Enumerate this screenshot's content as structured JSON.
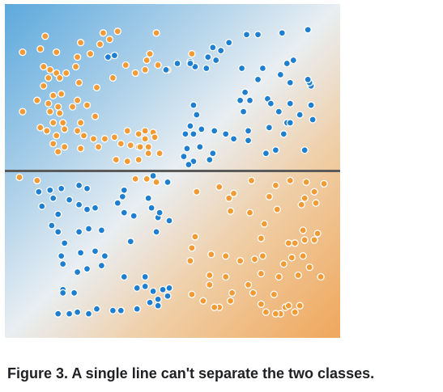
{
  "caption": "Figure 3. A single line can't separate the two classes.",
  "colors": {
    "blue_class": "#1e7fd0",
    "orange_class": "#f29a34",
    "point_stroke": "#ffffff",
    "separator_line": "#5a5a5a",
    "gradient_blue": "#5da9dc",
    "gradient_orange": "#efa75c"
  },
  "chart_data": {
    "type": "scatter",
    "title": "",
    "xlabel": "",
    "ylabel": "",
    "xlim": [
      -1,
      1
    ],
    "ylim": [
      -1,
      1
    ],
    "grid": false,
    "separator": {
      "orientation": "horizontal",
      "y": 0
    },
    "series": [
      {
        "color": "#f29a34",
        "points": [
          [
            -0.79,
            0.84
          ],
          [
            -0.43,
            0.86
          ],
          [
            -0.34,
            0.87
          ],
          [
            -0.39,
            0.82
          ],
          [
            -0.45,
            0.79
          ],
          [
            -0.51,
            0.73
          ],
          [
            -0.59,
            0.71
          ],
          [
            -0.57,
            0.8
          ],
          [
            -0.82,
            0.76
          ],
          [
            -0.72,
            0.74
          ],
          [
            -0.93,
            0.74
          ],
          [
            -0.66,
            0.61
          ],
          [
            -0.6,
            0.65
          ],
          [
            -0.8,
            0.65
          ],
          [
            -0.76,
            0.63
          ],
          [
            -0.72,
            0.61
          ],
          [
            -0.77,
            0.58
          ],
          [
            -0.7,
            0.58
          ],
          [
            -0.58,
            0.55
          ],
          [
            -0.47,
            0.52
          ],
          [
            -0.37,
            0.58
          ],
          [
            -0.29,
            0.66
          ],
          [
            -0.23,
            0.61
          ],
          [
            -0.17,
            0.63
          ],
          [
            -0.16,
            0.69
          ],
          [
            -0.14,
            0.73
          ],
          [
            -0.1,
            0.86
          ],
          [
            -0.09,
            0.66
          ],
          [
            -0.03,
            0.63
          ],
          [
            0.12,
            0.73
          ],
          [
            -0.8,
            0.53
          ],
          [
            -0.74,
            0.47
          ],
          [
            -0.69,
            0.48
          ],
          [
            -0.84,
            0.44
          ],
          [
            -0.77,
            0.42
          ],
          [
            -0.71,
            0.4
          ],
          [
            -0.59,
            0.44
          ],
          [
            -0.53,
            0.41
          ],
          [
            -0.62,
            0.4
          ],
          [
            -0.76,
            0.37
          ],
          [
            -0.7,
            0.36
          ],
          [
            -0.68,
            0.3
          ],
          [
            -0.74,
            0.3
          ],
          [
            -0.93,
            0.37
          ],
          [
            -0.57,
            0.3
          ],
          [
            -0.48,
            0.34
          ],
          [
            -0.67,
            0.26
          ],
          [
            -0.82,
            0.27
          ],
          [
            -0.78,
            0.25
          ],
          [
            -0.72,
            0.22
          ],
          [
            -0.59,
            0.25
          ],
          [
            -0.55,
            0.22
          ],
          [
            -0.49,
            0.2
          ],
          [
            -0.42,
            0.2
          ],
          [
            -0.36,
            0.21
          ],
          [
            -0.28,
            0.25
          ],
          [
            -0.21,
            0.23
          ],
          [
            -0.17,
            0.25
          ],
          [
            -0.12,
            0.24
          ],
          [
            -0.17,
            0.2
          ],
          [
            -0.11,
            0.21
          ],
          [
            -0.21,
            0.15
          ],
          [
            -0.15,
            0.15
          ],
          [
            -0.15,
            0.11
          ],
          [
            -0.08,
            0.11
          ],
          [
            -0.74,
            0.17
          ],
          [
            -0.67,
            0.15
          ],
          [
            -0.57,
            0.14
          ],
          [
            -0.46,
            0.15
          ],
          [
            -0.32,
            0.17
          ],
          [
            -0.26,
            0.16
          ],
          [
            -0.2,
            0.15
          ],
          [
            -0.35,
            0.07
          ],
          [
            -0.28,
            0.06
          ],
          [
            -0.21,
            0.07
          ],
          [
            -0.71,
            0.12
          ],
          [
            -0.95,
            -0.04
          ],
          [
            -0.84,
            -0.06
          ],
          [
            -0.23,
            -0.05
          ],
          [
            -0.16,
            -0.05
          ],
          [
            -0.1,
            -0.07
          ],
          [
            0.15,
            -0.13
          ],
          [
            0.29,
            -0.1
          ],
          [
            0.38,
            -0.14
          ],
          [
            0.35,
            -0.17
          ],
          [
            0.49,
            -0.06
          ],
          [
            0.64,
            -0.09
          ],
          [
            0.73,
            -0.06
          ],
          [
            0.83,
            -0.07
          ],
          [
            0.88,
            -0.13
          ],
          [
            0.94,
            -0.08
          ],
          [
            0.82,
            -0.17
          ],
          [
            0.89,
            -0.2
          ],
          [
            0.8,
            -0.21
          ],
          [
            0.36,
            -0.25
          ],
          [
            0.48,
            -0.26
          ],
          [
            0.6,
            -0.16
          ],
          [
            0.65,
            -0.24
          ],
          [
            0.57,
            -0.33
          ],
          [
            0.55,
            -0.42
          ],
          [
            0.81,
            -0.37
          ],
          [
            0.9,
            -0.39
          ],
          [
            0.88,
            -0.43
          ],
          [
            0.76,
            -0.45
          ],
          [
            0.72,
            -0.45
          ],
          [
            0.82,
            -0.43
          ],
          [
            0.81,
            -0.53
          ],
          [
            0.69,
            -0.58
          ],
          [
            0.74,
            -0.54
          ],
          [
            0.85,
            -0.6
          ],
          [
            0.92,
            -0.66
          ],
          [
            0.78,
            -0.65
          ],
          [
            0.66,
            -0.66
          ],
          [
            0.56,
            -0.53
          ],
          [
            0.51,
            -0.55
          ],
          [
            0.55,
            -0.64
          ],
          [
            0.42,
            -0.56
          ],
          [
            0.33,
            -0.53
          ],
          [
            0.24,
            -0.52
          ],
          [
            0.14,
            -0.41
          ],
          [
            0.12,
            -0.48
          ],
          [
            0.11,
            -0.56
          ],
          [
            0.23,
            -0.65
          ],
          [
            0.23,
            -0.71
          ],
          [
            0.33,
            -0.66
          ],
          [
            0.37,
            -0.76
          ],
          [
            0.36,
            -0.81
          ],
          [
            0.47,
            -0.71
          ],
          [
            0.5,
            -0.76
          ],
          [
            0.55,
            -0.83
          ],
          [
            0.63,
            -0.77
          ],
          [
            0.67,
            -0.89
          ],
          [
            0.7,
            -0.85
          ],
          [
            0.72,
            -0.84
          ],
          [
            0.64,
            -0.89
          ],
          [
            0.58,
            -0.88
          ],
          [
            0.76,
            -0.88
          ],
          [
            0.79,
            -0.84
          ],
          [
            0.29,
            -0.85
          ],
          [
            0.26,
            -0.85
          ],
          [
            0.19,
            -0.81
          ],
          [
            0.12,
            -0.77
          ]
        ]
      },
      {
        "color": "#1e7fd0",
        "points": [
          [
            0.46,
            0.85
          ],
          [
            0.53,
            0.85
          ],
          [
            0.68,
            0.86
          ],
          [
            0.84,
            0.88
          ],
          [
            0.35,
            0.8
          ],
          [
            0.22,
            0.71
          ],
          [
            0.27,
            0.69
          ],
          [
            0.3,
            0.75
          ],
          [
            0.25,
            0.77
          ],
          [
            0.14,
            0.65
          ],
          [
            0.03,
            0.67
          ],
          [
            0.11,
            0.68
          ],
          [
            0.21,
            0.64
          ],
          [
            0.43,
            0.64
          ],
          [
            0.56,
            0.64
          ],
          [
            0.71,
            0.67
          ],
          [
            0.75,
            0.69
          ],
          [
            0.67,
            0.6
          ],
          [
            0.53,
            0.57
          ],
          [
            0.59,
            0.45
          ],
          [
            0.73,
            0.55
          ],
          [
            0.86,
            0.53
          ],
          [
            0.85,
            0.55
          ],
          [
            0.84,
            0.57
          ],
          [
            0.45,
            0.49
          ],
          [
            0.42,
            0.44
          ],
          [
            0.48,
            0.44
          ],
          [
            0.61,
            0.42
          ],
          [
            0.73,
            0.42
          ],
          [
            0.86,
            0.41
          ],
          [
            0.44,
            0.37
          ],
          [
            0.66,
            0.37
          ],
          [
            0.79,
            0.35
          ],
          [
            0.71,
            0.3
          ],
          [
            0.69,
            0.23
          ],
          [
            0.73,
            0.3
          ],
          [
            0.87,
            0.32
          ],
          [
            0.6,
            0.27
          ],
          [
            0.13,
            0.41
          ],
          [
            0.15,
            0.35
          ],
          [
            0.11,
            0.28
          ],
          [
            0.08,
            0.23
          ],
          [
            0.13,
            0.23
          ],
          [
            0.18,
            0.26
          ],
          [
            0.26,
            0.25
          ],
          [
            0.33,
            0.23
          ],
          [
            0.38,
            0.2
          ],
          [
            0.47,
            0.25
          ],
          [
            0.47,
            0.19
          ],
          [
            0.58,
            0.11
          ],
          [
            0.64,
            0.13
          ],
          [
            0.82,
            0.13
          ],
          [
            0.09,
            0.14
          ],
          [
            0.17,
            0.15
          ],
          [
            0.25,
            0.11
          ],
          [
            0.07,
            0.09
          ],
          [
            0.13,
            0.06
          ],
          [
            0.23,
            0.07
          ],
          [
            0.1,
            0.04
          ],
          [
            -0.4,
            0.71
          ],
          [
            -0.36,
            0.72
          ],
          [
            -0.04,
            0.63
          ],
          [
            0.11,
            0.67
          ],
          [
            -0.12,
            -0.03
          ],
          [
            -0.03,
            -0.07
          ],
          [
            -0.83,
            -0.13
          ],
          [
            -0.76,
            -0.12
          ],
          [
            -0.74,
            -0.17
          ],
          [
            -0.69,
            -0.11
          ],
          [
            -0.58,
            -0.09
          ],
          [
            -0.53,
            -0.11
          ],
          [
            -0.81,
            -0.22
          ],
          [
            -0.71,
            -0.27
          ],
          [
            -0.64,
            -0.18
          ],
          [
            -0.58,
            -0.21
          ],
          [
            -0.53,
            -0.24
          ],
          [
            -0.48,
            -0.23
          ],
          [
            -0.3,
            -0.12
          ],
          [
            -0.31,
            -0.16
          ],
          [
            -0.15,
            -0.17
          ],
          [
            -0.13,
            -0.23
          ],
          [
            -0.09,
            -0.29
          ],
          [
            -0.02,
            -0.31
          ],
          [
            -0.08,
            -0.26
          ],
          [
            -0.34,
            -0.2
          ],
          [
            -0.24,
            -0.28
          ],
          [
            -0.3,
            -0.26
          ],
          [
            -0.58,
            -0.38
          ],
          [
            -0.52,
            -0.36
          ],
          [
            -0.44,
            -0.37
          ],
          [
            -0.75,
            -0.34
          ],
          [
            -0.71,
            -0.38
          ],
          [
            -0.26,
            -0.44
          ],
          [
            -0.1,
            -0.38
          ],
          [
            -0.67,
            -0.45
          ],
          [
            -0.69,
            -0.53
          ],
          [
            -0.57,
            -0.51
          ],
          [
            -0.48,
            -0.5
          ],
          [
            -0.42,
            -0.53
          ],
          [
            -0.68,
            -0.58
          ],
          [
            -0.59,
            -0.63
          ],
          [
            -0.53,
            -0.61
          ],
          [
            -0.44,
            -0.59
          ],
          [
            -0.3,
            -0.66
          ],
          [
            -0.68,
            -0.74
          ],
          [
            -0.61,
            -0.76
          ],
          [
            -0.22,
            -0.73
          ],
          [
            -0.17,
            -0.66
          ],
          [
            -0.17,
            -0.72
          ],
          [
            -0.12,
            -0.75
          ],
          [
            -0.06,
            -0.74
          ],
          [
            -0.02,
            -0.73
          ],
          [
            -0.09,
            -0.8
          ],
          [
            -0.03,
            -0.78
          ],
          [
            -0.14,
            -0.82
          ],
          [
            -0.09,
            -0.84
          ],
          [
            -0.71,
            -0.89
          ],
          [
            -0.64,
            -0.89
          ],
          [
            -0.59,
            -0.88
          ],
          [
            -0.52,
            -0.89
          ],
          [
            -0.47,
            -0.86
          ],
          [
            -0.37,
            -0.87
          ],
          [
            -0.32,
            -0.87
          ],
          [
            -0.22,
            -0.86
          ],
          [
            -0.68,
            -0.76
          ]
        ]
      }
    ]
  }
}
